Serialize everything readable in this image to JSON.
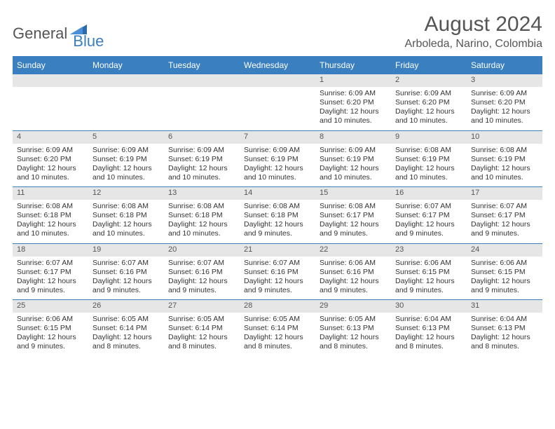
{
  "logo": {
    "part1": "General",
    "part2": "Blue"
  },
  "title": "August 2024",
  "subtitle": "Arboleda, Narino, Colombia",
  "colors": {
    "accent": "#3a7fbf",
    "daynum_bg": "#e6e6e6",
    "text": "#333333",
    "muted": "#555555",
    "bg": "#ffffff"
  },
  "day_headers": [
    "Sunday",
    "Monday",
    "Tuesday",
    "Wednesday",
    "Thursday",
    "Friday",
    "Saturday"
  ],
  "label_sunrise": "Sunrise:",
  "label_sunset": "Sunset:",
  "label_daylight": "Daylight:",
  "weeks": [
    [
      {
        "num": "",
        "sunrise": "",
        "sunset": "",
        "daylight": ""
      },
      {
        "num": "",
        "sunrise": "",
        "sunset": "",
        "daylight": ""
      },
      {
        "num": "",
        "sunrise": "",
        "sunset": "",
        "daylight": ""
      },
      {
        "num": "",
        "sunrise": "",
        "sunset": "",
        "daylight": ""
      },
      {
        "num": "1",
        "sunrise": "6:09 AM",
        "sunset": "6:20 PM",
        "daylight": "12 hours and 10 minutes."
      },
      {
        "num": "2",
        "sunrise": "6:09 AM",
        "sunset": "6:20 PM",
        "daylight": "12 hours and 10 minutes."
      },
      {
        "num": "3",
        "sunrise": "6:09 AM",
        "sunset": "6:20 PM",
        "daylight": "12 hours and 10 minutes."
      }
    ],
    [
      {
        "num": "4",
        "sunrise": "6:09 AM",
        "sunset": "6:20 PM",
        "daylight": "12 hours and 10 minutes."
      },
      {
        "num": "5",
        "sunrise": "6:09 AM",
        "sunset": "6:19 PM",
        "daylight": "12 hours and 10 minutes."
      },
      {
        "num": "6",
        "sunrise": "6:09 AM",
        "sunset": "6:19 PM",
        "daylight": "12 hours and 10 minutes."
      },
      {
        "num": "7",
        "sunrise": "6:09 AM",
        "sunset": "6:19 PM",
        "daylight": "12 hours and 10 minutes."
      },
      {
        "num": "8",
        "sunrise": "6:09 AM",
        "sunset": "6:19 PM",
        "daylight": "12 hours and 10 minutes."
      },
      {
        "num": "9",
        "sunrise": "6:08 AM",
        "sunset": "6:19 PM",
        "daylight": "12 hours and 10 minutes."
      },
      {
        "num": "10",
        "sunrise": "6:08 AM",
        "sunset": "6:19 PM",
        "daylight": "12 hours and 10 minutes."
      }
    ],
    [
      {
        "num": "11",
        "sunrise": "6:08 AM",
        "sunset": "6:18 PM",
        "daylight": "12 hours and 10 minutes."
      },
      {
        "num": "12",
        "sunrise": "6:08 AM",
        "sunset": "6:18 PM",
        "daylight": "12 hours and 10 minutes."
      },
      {
        "num": "13",
        "sunrise": "6:08 AM",
        "sunset": "6:18 PM",
        "daylight": "12 hours and 10 minutes."
      },
      {
        "num": "14",
        "sunrise": "6:08 AM",
        "sunset": "6:18 PM",
        "daylight": "12 hours and 9 minutes."
      },
      {
        "num": "15",
        "sunrise": "6:08 AM",
        "sunset": "6:17 PM",
        "daylight": "12 hours and 9 minutes."
      },
      {
        "num": "16",
        "sunrise": "6:07 AM",
        "sunset": "6:17 PM",
        "daylight": "12 hours and 9 minutes."
      },
      {
        "num": "17",
        "sunrise": "6:07 AM",
        "sunset": "6:17 PM",
        "daylight": "12 hours and 9 minutes."
      }
    ],
    [
      {
        "num": "18",
        "sunrise": "6:07 AM",
        "sunset": "6:17 PM",
        "daylight": "12 hours and 9 minutes."
      },
      {
        "num": "19",
        "sunrise": "6:07 AM",
        "sunset": "6:16 PM",
        "daylight": "12 hours and 9 minutes."
      },
      {
        "num": "20",
        "sunrise": "6:07 AM",
        "sunset": "6:16 PM",
        "daylight": "12 hours and 9 minutes."
      },
      {
        "num": "21",
        "sunrise": "6:07 AM",
        "sunset": "6:16 PM",
        "daylight": "12 hours and 9 minutes."
      },
      {
        "num": "22",
        "sunrise": "6:06 AM",
        "sunset": "6:16 PM",
        "daylight": "12 hours and 9 minutes."
      },
      {
        "num": "23",
        "sunrise": "6:06 AM",
        "sunset": "6:15 PM",
        "daylight": "12 hours and 9 minutes."
      },
      {
        "num": "24",
        "sunrise": "6:06 AM",
        "sunset": "6:15 PM",
        "daylight": "12 hours and 9 minutes."
      }
    ],
    [
      {
        "num": "25",
        "sunrise": "6:06 AM",
        "sunset": "6:15 PM",
        "daylight": "12 hours and 9 minutes."
      },
      {
        "num": "26",
        "sunrise": "6:05 AM",
        "sunset": "6:14 PM",
        "daylight": "12 hours and 8 minutes."
      },
      {
        "num": "27",
        "sunrise": "6:05 AM",
        "sunset": "6:14 PM",
        "daylight": "12 hours and 8 minutes."
      },
      {
        "num": "28",
        "sunrise": "6:05 AM",
        "sunset": "6:14 PM",
        "daylight": "12 hours and 8 minutes."
      },
      {
        "num": "29",
        "sunrise": "6:05 AM",
        "sunset": "6:13 PM",
        "daylight": "12 hours and 8 minutes."
      },
      {
        "num": "30",
        "sunrise": "6:04 AM",
        "sunset": "6:13 PM",
        "daylight": "12 hours and 8 minutes."
      },
      {
        "num": "31",
        "sunrise": "6:04 AM",
        "sunset": "6:13 PM",
        "daylight": "12 hours and 8 minutes."
      }
    ]
  ]
}
